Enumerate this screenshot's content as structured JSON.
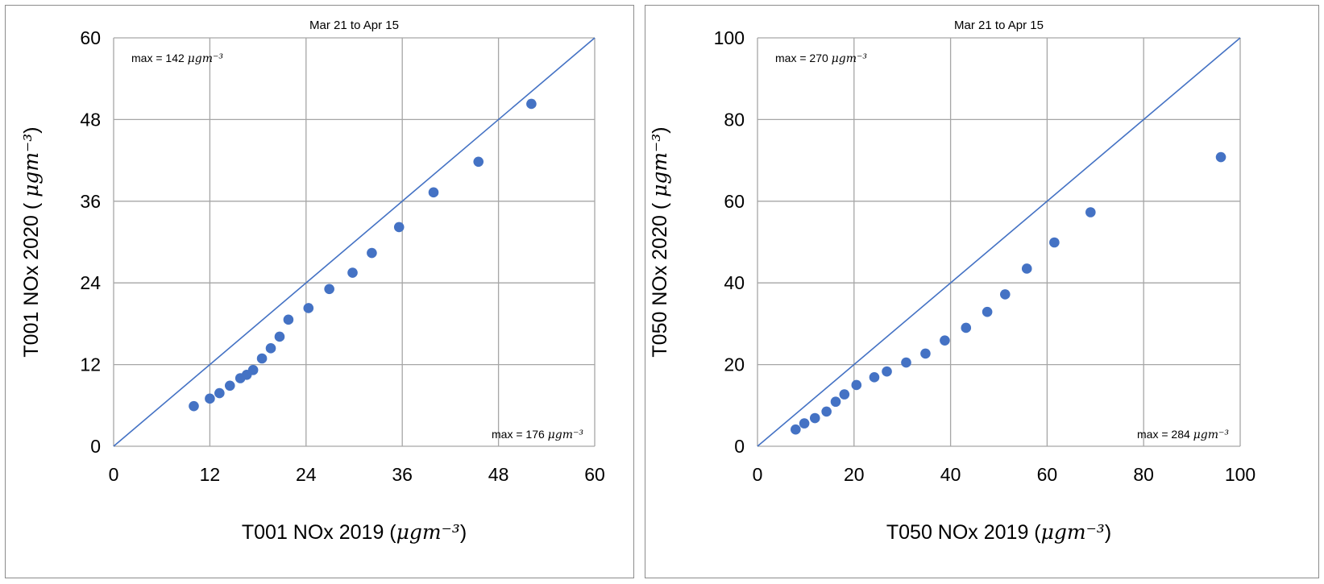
{
  "chart_data": [
    {
      "type": "scatter",
      "title": "Mar 21 to Apr 15",
      "xlabel": "T001 NOx 2019",
      "xlabel_unit": "μgm⁻³",
      "ylabel": "T001 NOx 2020",
      "ylabel_unit": "μgm⁻³",
      "xlim": [
        0,
        60
      ],
      "ylim": [
        0,
        60
      ],
      "xticks": [
        "0",
        "12",
        "24",
        "36",
        "48",
        "60"
      ],
      "yticks": [
        "0",
        "12",
        "24",
        "36",
        "48",
        "60"
      ],
      "grid": true,
      "reference_line": "y = x",
      "colors": {
        "points": "#4472c4",
        "line": "#4472c4",
        "grid": "#a6a6a6"
      },
      "annotations": {
        "top_left": {
          "prefix": "max = 142 ",
          "unit": "μgm⁻³"
        },
        "bottom_right": {
          "prefix": "max = 176 ",
          "unit": "μgm⁻³"
        }
      },
      "series": [
        {
          "points": [
            [
              10,
              5.9
            ],
            [
              12,
              7.0
            ],
            [
              13.2,
              7.8
            ],
            [
              14.5,
              8.9
            ],
            [
              15.8,
              10.0
            ],
            [
              16.6,
              10.5
            ],
            [
              17.4,
              11.2
            ],
            [
              18.5,
              12.9
            ],
            [
              19.6,
              14.4
            ],
            [
              20.7,
              16.1
            ],
            [
              21.8,
              18.6
            ],
            [
              24.3,
              20.3
            ],
            [
              26.9,
              23.1
            ],
            [
              29.8,
              25.5
            ],
            [
              32.2,
              28.4
            ],
            [
              35.6,
              32.2
            ],
            [
              39.9,
              37.3
            ],
            [
              45.5,
              41.8
            ],
            [
              52.1,
              50.3
            ]
          ]
        }
      ]
    },
    {
      "type": "scatter",
      "title": "Mar 21 to Apr 15",
      "xlabel": "T050 NOx 2019",
      "xlabel_unit": "μgm⁻³",
      "ylabel": "T050 NOx 2020",
      "ylabel_unit": "μgm⁻³",
      "xlim": [
        0,
        100
      ],
      "ylim": [
        0,
        100
      ],
      "xticks": [
        "0",
        "20",
        "40",
        "60",
        "80",
        "100"
      ],
      "yticks": [
        "0",
        "20",
        "40",
        "60",
        "80",
        "100"
      ],
      "grid": true,
      "reference_line": "y = x",
      "colors": {
        "points": "#4472c4",
        "line": "#4472c4",
        "grid": "#a6a6a6"
      },
      "annotations": {
        "top_left": {
          "prefix": "max = 270 ",
          "unit": "μgm⁻³"
        },
        "bottom_right": {
          "prefix": "max = 284 ",
          "unit": "μgm⁻³"
        }
      },
      "series": [
        {
          "points": [
            [
              7.9,
              4.1
            ],
            [
              9.7,
              5.6
            ],
            [
              11.9,
              6.9
            ],
            [
              14.3,
              8.5
            ],
            [
              16.2,
              10.9
            ],
            [
              18.0,
              12.7
            ],
            [
              20.5,
              15.0
            ],
            [
              24.2,
              16.9
            ],
            [
              26.8,
              18.3
            ],
            [
              30.8,
              20.5
            ],
            [
              34.8,
              22.7
            ],
            [
              38.8,
              25.9
            ],
            [
              43.2,
              29.0
            ],
            [
              47.6,
              32.9
            ],
            [
              51.3,
              37.2
            ],
            [
              55.8,
              43.5
            ],
            [
              61.5,
              49.9
            ],
            [
              69.0,
              57.3
            ],
            [
              96.0,
              70.8
            ]
          ]
        }
      ]
    }
  ]
}
